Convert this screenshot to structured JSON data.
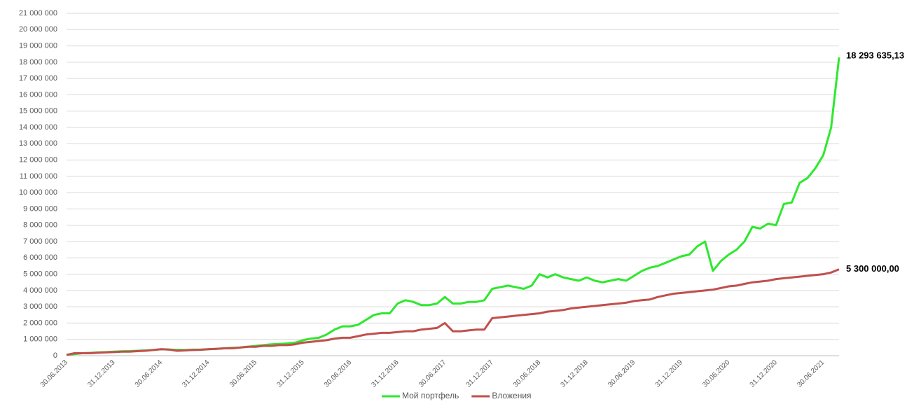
{
  "chart_data": {
    "type": "line",
    "categories": [
      "30.06.2013",
      null,
      null,
      null,
      null,
      null,
      "31.12.2013",
      null,
      null,
      null,
      null,
      null,
      "30.06.2014",
      null,
      null,
      null,
      null,
      null,
      "31.12.2014",
      null,
      null,
      null,
      null,
      null,
      "30.06.2015",
      null,
      null,
      null,
      null,
      null,
      "31.12.2015",
      null,
      null,
      null,
      null,
      null,
      "30.06.2016",
      null,
      null,
      null,
      null,
      null,
      "31.12.2016",
      null,
      null,
      null,
      null,
      null,
      "30.06.2017",
      null,
      null,
      null,
      null,
      null,
      "31.12.2017",
      null,
      null,
      null,
      null,
      null,
      "30.06.2018",
      null,
      null,
      null,
      null,
      null,
      "31.12.2018",
      null,
      null,
      null,
      null,
      null,
      "30.06.2019",
      null,
      null,
      null,
      null,
      null,
      "31.12.2019",
      null,
      null,
      null,
      null,
      null,
      "30.06.2020",
      null,
      null,
      null,
      null,
      null,
      "31.12.2020",
      null,
      null,
      null,
      null,
      null,
      "30.06.2021",
      null,
      null
    ],
    "series": [
      {
        "name": "Мой портфель",
        "color": "#2ee82e",
        "values": [
          50000,
          100000,
          150000,
          170000,
          200000,
          220000,
          250000,
          270000,
          280000,
          300000,
          320000,
          350000,
          400000,
          380000,
          360000,
          350000,
          370000,
          380000,
          400000,
          420000,
          450000,
          480000,
          500000,
          550000,
          600000,
          650000,
          700000,
          720000,
          750000,
          800000,
          950000,
          1050000,
          1100000,
          1300000,
          1600000,
          1800000,
          1800000,
          1900000,
          2200000,
          2500000,
          2600000,
          2600000,
          3200000,
          3400000,
          3300000,
          3100000,
          3100000,
          3200000,
          3600000,
          3200000,
          3200000,
          3300000,
          3300000,
          3400000,
          4100000,
          4200000,
          4300000,
          4200000,
          4100000,
          4300000,
          5000000,
          4800000,
          5000000,
          4800000,
          4700000,
          4600000,
          4800000,
          4600000,
          4500000,
          4600000,
          4700000,
          4600000,
          4900000,
          5200000,
          5400000,
          5500000,
          5700000,
          5900000,
          6100000,
          6200000,
          6700000,
          7000000,
          5200000,
          5800000,
          6200000,
          6500000,
          7000000,
          7900000,
          7800000,
          8100000,
          8000000,
          9300000,
          9400000,
          10600000,
          10900000,
          11500000,
          12300000,
          14000000,
          18293635.13
        ],
        "value_labels": [
          null,
          null,
          null,
          null,
          null,
          null,
          null,
          null,
          null,
          null,
          null,
          null,
          null,
          null,
          null,
          null,
          null,
          null,
          null,
          null,
          null,
          null,
          null,
          null,
          null,
          null,
          null,
          null,
          null,
          null,
          null,
          null,
          null,
          null,
          null,
          null,
          null,
          null,
          null,
          null,
          null,
          null,
          null,
          null,
          null,
          null,
          null,
          null,
          null,
          null,
          null,
          null,
          null,
          null,
          null,
          null,
          null,
          null,
          null,
          null,
          null,
          null,
          null,
          null,
          null,
          null,
          null,
          null,
          null,
          null,
          null,
          null,
          null,
          null,
          null,
          null,
          null,
          null,
          null,
          null,
          null,
          null,
          null,
          null,
          null,
          null,
          null,
          null,
          null,
          null,
          null,
          null,
          null,
          null,
          null,
          null,
          null,
          null,
          "18 293 635,13"
        ]
      },
      {
        "name": "Вложения",
        "color": "#c0504d",
        "values": [
          50000,
          150000,
          150000,
          150000,
          180000,
          200000,
          220000,
          250000,
          250000,
          280000,
          300000,
          350000,
          400000,
          380000,
          300000,
          320000,
          350000,
          360000,
          400000,
          420000,
          450000,
          450000,
          500000,
          550000,
          550000,
          600000,
          600000,
          650000,
          650000,
          700000,
          800000,
          850000,
          900000,
          950000,
          1050000,
          1100000,
          1100000,
          1200000,
          1300000,
          1350000,
          1400000,
          1400000,
          1450000,
          1500000,
          1500000,
          1600000,
          1650000,
          1700000,
          2000000,
          1500000,
          1500000,
          1550000,
          1600000,
          1600000,
          2300000,
          2350000,
          2400000,
          2450000,
          2500000,
          2550000,
          2600000,
          2700000,
          2750000,
          2800000,
          2900000,
          2950000,
          3000000,
          3050000,
          3100000,
          3150000,
          3200000,
          3250000,
          3350000,
          3400000,
          3450000,
          3600000,
          3700000,
          3800000,
          3850000,
          3900000,
          3950000,
          4000000,
          4050000,
          4150000,
          4250000,
          4300000,
          4400000,
          4500000,
          4550000,
          4600000,
          4700000,
          4750000,
          4800000,
          4850000,
          4900000,
          4950000,
          5000000,
          5100000,
          5300000
        ],
        "value_labels": [
          null,
          null,
          null,
          null,
          null,
          null,
          null,
          null,
          null,
          null,
          null,
          null,
          null,
          null,
          null,
          null,
          null,
          null,
          null,
          null,
          null,
          null,
          null,
          null,
          null,
          null,
          null,
          null,
          null,
          null,
          null,
          null,
          null,
          null,
          null,
          null,
          null,
          null,
          null,
          null,
          null,
          null,
          null,
          null,
          null,
          null,
          null,
          null,
          null,
          null,
          null,
          null,
          null,
          null,
          null,
          null,
          null,
          null,
          null,
          null,
          null,
          null,
          null,
          null,
          null,
          null,
          null,
          null,
          null,
          null,
          null,
          null,
          null,
          null,
          null,
          null,
          null,
          null,
          null,
          null,
          null,
          null,
          null,
          null,
          null,
          null,
          null,
          null,
          null,
          null,
          null,
          null,
          null,
          null,
          null,
          null,
          null,
          null,
          "5 300 000,00"
        ]
      }
    ],
    "ylim": [
      0,
      21000000
    ],
    "yticks": [
      {
        "value": 0,
        "label": "0"
      },
      {
        "value": 1000000,
        "label": "1 000 000"
      },
      {
        "value": 2000000,
        "label": "2 000 000"
      },
      {
        "value": 3000000,
        "label": "3 000 000"
      },
      {
        "value": 4000000,
        "label": "4 000 000"
      },
      {
        "value": 5000000,
        "label": "5 000 000"
      },
      {
        "value": 6000000,
        "label": "6 000 000"
      },
      {
        "value": 7000000,
        "label": "7 000 000"
      },
      {
        "value": 8000000,
        "label": "8 000 000"
      },
      {
        "value": 9000000,
        "label": "9 000 000"
      },
      {
        "value": 10000000,
        "label": "10 000 000"
      },
      {
        "value": 11000000,
        "label": "11 000 000"
      },
      {
        "value": 12000000,
        "label": "12 000 000"
      },
      {
        "value": 13000000,
        "label": "13 000 000"
      },
      {
        "value": 14000000,
        "label": "14 000 000"
      },
      {
        "value": 15000000,
        "label": "15 000 000"
      },
      {
        "value": 16000000,
        "label": "16 000 000"
      },
      {
        "value": 17000000,
        "label": "17 000 000"
      },
      {
        "value": 18000000,
        "label": "18 000 000"
      },
      {
        "value": 19000000,
        "label": "19 000 000"
      },
      {
        "value": 20000000,
        "label": "20 000 000"
      },
      {
        "value": 21000000,
        "label": "21 000 000"
      }
    ],
    "grid": true,
    "legend": "bottom"
  }
}
